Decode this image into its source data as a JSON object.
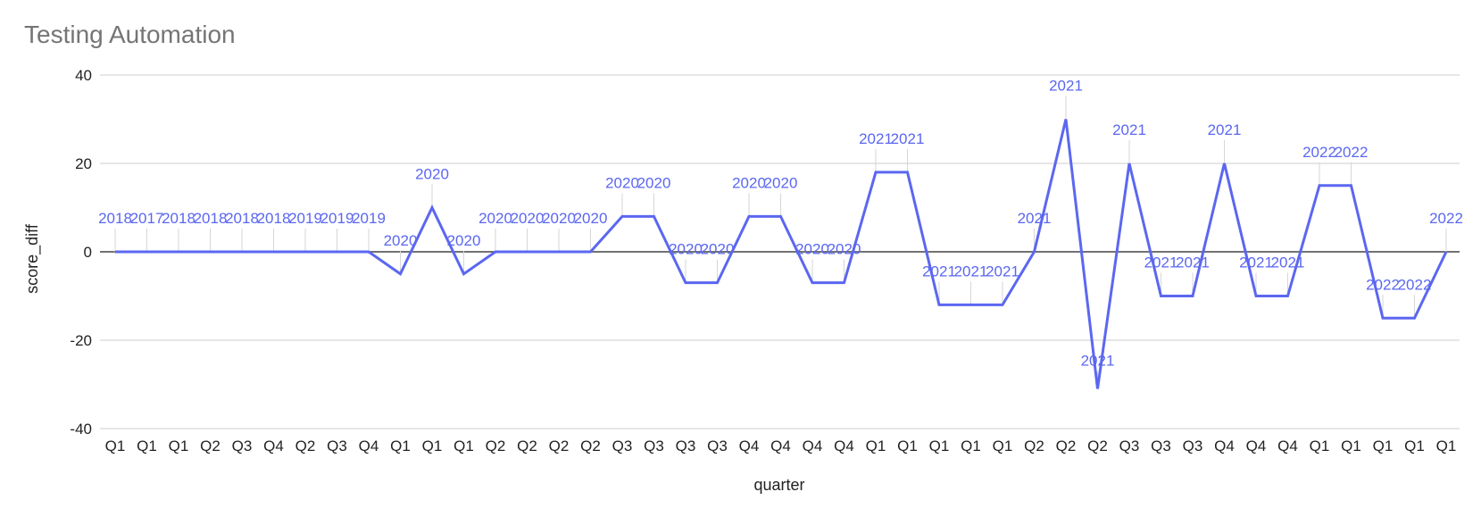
{
  "chart_data": {
    "type": "line",
    "title": "Testing Automation",
    "xlabel": "quarter",
    "ylabel": "score_diff",
    "ylim": [
      -40,
      40
    ],
    "yticks": [
      -40,
      -20,
      0,
      20,
      40
    ],
    "grid": true,
    "legend": "none",
    "colors": {
      "series": "#5b67f0",
      "grid": "#cccccc",
      "zero": "#444444",
      "title": "#757575"
    },
    "categories": [
      "Q1",
      "Q1",
      "Q1",
      "Q2",
      "Q3",
      "Q4",
      "Q2",
      "Q3",
      "Q4",
      "Q1",
      "Q1",
      "Q1",
      "Q2",
      "Q2",
      "Q2",
      "Q2",
      "Q3",
      "Q3",
      "Q3",
      "Q3",
      "Q4",
      "Q4",
      "Q4",
      "Q4",
      "Q1",
      "Q1",
      "Q1",
      "Q1",
      "Q1",
      "Q2",
      "Q2",
      "Q2",
      "Q3",
      "Q3",
      "Q3",
      "Q4",
      "Q4",
      "Q4",
      "Q1",
      "Q1",
      "Q1",
      "Q1",
      "Q1"
    ],
    "series": [
      {
        "values": [
          0,
          0,
          0,
          0,
          0,
          0,
          0,
          0,
          0,
          -5,
          10,
          -5,
          0,
          0,
          0,
          0,
          8,
          8,
          -7,
          -7,
          8,
          8,
          -7,
          -7,
          18,
          18,
          -12,
          -12,
          -12,
          0,
          30,
          -31,
          20,
          -10,
          -10,
          20,
          -10,
          -10,
          15,
          15,
          -15,
          -15,
          0
        ],
        "labels": [
          "2018",
          "2017",
          "2018",
          "2018",
          "2018",
          "2018",
          "2019",
          "2019",
          "2019",
          "2020",
          "2020",
          "2020",
          "2020",
          "2020",
          "2020",
          "2020",
          "2020",
          "2020",
          "2020",
          "2020",
          "2020",
          "2020",
          "2020",
          "2020",
          "2021",
          "2021",
          "2021",
          "2021",
          "2021",
          "2021",
          "2021",
          "2021",
          "2021",
          "2021",
          "2021",
          "2021",
          "2021",
          "2021",
          "2022",
          "2022",
          "2022",
          "2022",
          "2022"
        ]
      }
    ]
  }
}
